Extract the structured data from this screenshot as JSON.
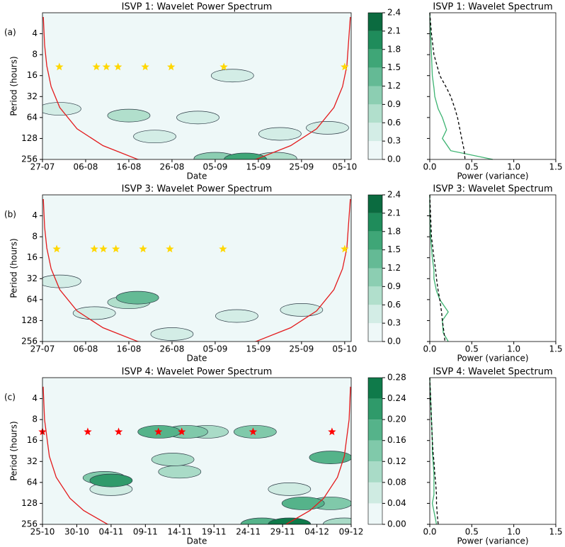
{
  "chart_data": [
    {
      "type": "wavelet",
      "title": "ISVP 1: Wavelet Power Spectrum",
      "panel_label": "(a)",
      "xlabel": "Date",
      "ylabel": "Period (hours)",
      "xlim": [
        0,
        71.5
      ],
      "xticks": [
        {
          "value": 0,
          "label": "27-07"
        },
        {
          "value": 10,
          "label": "06-08"
        },
        {
          "value": 20,
          "label": "16-08"
        },
        {
          "value": 30,
          "label": "26-08"
        },
        {
          "value": 40,
          "label": "05-09"
        },
        {
          "value": 50,
          "label": "15-09"
        },
        {
          "value": 60,
          "label": "25-09"
        },
        {
          "value": 70,
          "label": "05-10"
        }
      ],
      "ylim": [
        2,
        256
      ],
      "yticks": [
        4,
        8,
        16,
        32,
        64,
        128,
        256
      ],
      "log_y": true,
      "regions": {
        "x": [
          26,
          55,
          66,
          4,
          36,
          44,
          20,
          54,
          40,
          47
        ],
        "y": [
          120,
          110,
          90,
          48,
          64,
          16,
          60,
          250,
          250,
          256
        ],
        "power": [
          0.3,
          0.3,
          0.3,
          0.3,
          0.3,
          0.3,
          0.6,
          0.6,
          0.9,
          1.5
        ]
      },
      "coi": {
        "color": "#e31a1c",
        "x": [
          0.2,
          0.5,
          1,
          2,
          4,
          8,
          14,
          22,
          35.75,
          49.5,
          57.5,
          63.5,
          67.5,
          69.5,
          70.5,
          71.3
        ],
        "y": [
          2.3,
          5.8,
          11.6,
          23,
          46,
          93,
          162,
          255,
          415,
          255,
          162,
          93,
          46,
          23,
          11.6,
          2.3
        ]
      },
      "stars": {
        "color": "#ffd700",
        "x": [
          3.9,
          12.5,
          14.8,
          17.5,
          23.8,
          29.8,
          42,
          70
        ],
        "y": [
          12,
          12,
          12,
          12,
          12,
          12,
          12,
          12
        ]
      },
      "colorbar": {
        "ticks": [
          {
            "value": 0,
            "label": "0.0"
          },
          {
            "value": 0.3,
            "label": "0.3"
          },
          {
            "value": 0.6,
            "label": "0.6"
          },
          {
            "value": 0.9,
            "label": "0.9"
          },
          {
            "value": 1.2,
            "label": "1.2"
          },
          {
            "value": 1.5,
            "label": "1.5"
          },
          {
            "value": 1.8,
            "label": "1.8"
          },
          {
            "value": 2.1,
            "label": "2.1"
          },
          {
            "value": 2.4,
            "label": "2.4"
          }
        ],
        "colors": [
          "#eef8f8",
          "#d3ede6",
          "#b1dfcc",
          "#8cceb2",
          "#64ba95",
          "#3fa677",
          "#1f8c5b",
          "#0b6b40"
        ]
      }
    },
    {
      "type": "line",
      "title": "ISVP 1: Wavelet Spectrum",
      "xlabel": "Power (variance)",
      "xlim": [
        0,
        1.5
      ],
      "xticks": [
        {
          "value": 0,
          "label": "0.0"
        },
        {
          "value": 0.5,
          "label": "0.5"
        },
        {
          "value": 1,
          "label": "1.0"
        },
        {
          "value": 1.5,
          "label": "1.5"
        }
      ],
      "ylim": [
        2,
        256
      ],
      "yticks": [
        4,
        8,
        16,
        32,
        64,
        128,
        256
      ],
      "log_y": true,
      "y": [
        2,
        4,
        8,
        16,
        24,
        32,
        48,
        64,
        96,
        128,
        192,
        256
      ],
      "series": [
        {
          "color": "#3cb371",
          "values": [
            0,
            0.01,
            0.02,
            0.03,
            0.05,
            0.06,
            0.1,
            0.15,
            0.2,
            0.15,
            0.25,
            0.75
          ]
        },
        {
          "color": "#000000",
          "dashed": true,
          "values": [
            0,
            0.02,
            0.05,
            0.12,
            0.2,
            0.25,
            0.3,
            0.33,
            0.36,
            0.38,
            0.41,
            0.42
          ]
        }
      ]
    },
    {
      "type": "wavelet",
      "title": "ISVP 3: Wavelet Power Spectrum",
      "panel_label": "(b)",
      "xlabel": "Date",
      "ylabel": "Period (hours)",
      "xlim": [
        0,
        71.5
      ],
      "xticks": [
        {
          "value": 0,
          "label": "27-07"
        },
        {
          "value": 10,
          "label": "06-08"
        },
        {
          "value": 20,
          "label": "16-08"
        },
        {
          "value": 30,
          "label": "26-08"
        },
        {
          "value": 40,
          "label": "05-09"
        },
        {
          "value": 50,
          "label": "15-09"
        },
        {
          "value": 60,
          "label": "25-09"
        },
        {
          "value": 70,
          "label": "05-10"
        }
      ],
      "ylim": [
        2,
        256
      ],
      "yticks": [
        4,
        8,
        16,
        32,
        64,
        128,
        256
      ],
      "log_y": true,
      "regions": {
        "x": [
          12,
          45,
          60,
          4,
          30,
          20,
          22
        ],
        "y": [
          100,
          110,
          90,
          35,
          200,
          70,
          60
        ],
        "power": [
          0.3,
          0.3,
          0.3,
          0.3,
          0.3,
          0.6,
          1.2
        ]
      },
      "coi": {
        "color": "#e31a1c",
        "x": [
          0.2,
          0.5,
          1,
          2,
          4,
          8,
          14,
          22,
          35.75,
          49.5,
          57.5,
          63.5,
          67.5,
          69.5,
          70.5,
          71.3
        ],
        "y": [
          2.3,
          5.8,
          11.6,
          23,
          46,
          93,
          162,
          255,
          415,
          255,
          162,
          93,
          46,
          23,
          11.6,
          2.3
        ]
      },
      "stars": {
        "color": "#ffd700",
        "x": [
          3.3,
          12,
          14.1,
          17,
          23.3,
          29.5,
          41.8,
          70
        ],
        "y": [
          12,
          12,
          12,
          12,
          12,
          12,
          12,
          12
        ]
      },
      "colorbar": {
        "ticks": [
          {
            "value": 0,
            "label": "0.0"
          },
          {
            "value": 0.3,
            "label": "0.3"
          },
          {
            "value": 0.6,
            "label": "0.6"
          },
          {
            "value": 0.9,
            "label": "0.9"
          },
          {
            "value": 1.2,
            "label": "1.2"
          },
          {
            "value": 1.5,
            "label": "1.5"
          },
          {
            "value": 1.8,
            "label": "1.8"
          },
          {
            "value": 2.1,
            "label": "2.1"
          },
          {
            "value": 2.4,
            "label": "2.4"
          }
        ],
        "colors": [
          "#eef8f8",
          "#d3ede6",
          "#b1dfcc",
          "#8cceb2",
          "#64ba95",
          "#3fa677",
          "#1f8c5b",
          "#0b6b40"
        ]
      }
    },
    {
      "type": "line",
      "title": "ISVP 3: Wavelet Spectrum",
      "xlabel": "Power (variance)",
      "xlim": [
        0,
        1.5
      ],
      "xticks": [
        {
          "value": 0,
          "label": "0.0"
        },
        {
          "value": 0.5,
          "label": "0.5"
        },
        {
          "value": 1,
          "label": "1.0"
        },
        {
          "value": 1.5,
          "label": "1.5"
        }
      ],
      "ylim": [
        2,
        256
      ],
      "yticks": [
        4,
        8,
        16,
        32,
        64,
        128,
        256
      ],
      "log_y": true,
      "y": [
        2,
        4,
        8,
        16,
        24,
        32,
        48,
        64,
        96,
        128,
        192,
        256
      ],
      "series": [
        {
          "color": "#3cb371",
          "values": [
            0,
            0,
            0.01,
            0.03,
            0.05,
            0.05,
            0.08,
            0.12,
            0.22,
            0.15,
            0.16,
            0.22
          ]
        },
        {
          "color": "#000000",
          "dashed": true,
          "values": [
            0,
            0.01,
            0.02,
            0.05,
            0.07,
            0.08,
            0.1,
            0.12,
            0.14,
            0.15,
            0.17,
            0.18
          ]
        }
      ]
    },
    {
      "type": "wavelet",
      "title": "ISVP 4: Wavelet Power Spectrum",
      "panel_label": "(c)",
      "xlabel": "Date",
      "ylabel": "Period (hours)",
      "xlim": [
        0,
        45
      ],
      "xticks": [
        {
          "value": 0,
          "label": "25-10"
        },
        {
          "value": 5,
          "label": "30-10"
        },
        {
          "value": 10,
          "label": "04-11"
        },
        {
          "value": 15,
          "label": "09-11"
        },
        {
          "value": 20,
          "label": "14-11"
        },
        {
          "value": 25,
          "label": "19-11"
        },
        {
          "value": 30,
          "label": "24-11"
        },
        {
          "value": 35,
          "label": "29-11"
        },
        {
          "value": 40,
          "label": "04-12"
        },
        {
          "value": 45,
          "label": "09-12"
        }
      ],
      "ylim": [
        2,
        256
      ],
      "yticks": [
        4,
        8,
        16,
        32,
        64,
        128,
        256
      ],
      "log_y": true,
      "regions": {
        "x": [
          10,
          36,
          20,
          19,
          24,
          44,
          9,
          21,
          31,
          42,
          32,
          17,
          42,
          38,
          10,
          36
        ],
        "y": [
          80,
          80,
          45,
          30,
          12,
          256,
          55,
          12,
          12,
          128,
          256,
          12,
          28,
          128,
          60,
          256
        ],
        "power": [
          0.04,
          0.04,
          0.08,
          0.08,
          0.08,
          0.08,
          0.12,
          0.12,
          0.12,
          0.12,
          0.16,
          0.16,
          0.16,
          0.16,
          0.2,
          0.24
        ]
      },
      "coi": {
        "color": "#e31a1c",
        "x": [
          0.1,
          0.3,
          1,
          2,
          4,
          6,
          9.5,
          22.5,
          35.5,
          39,
          41,
          43,
          44,
          44.7,
          44.9
        ],
        "y": [
          2.7,
          8,
          27,
          54,
          108,
          162,
          256,
          607,
          256,
          162,
          108,
          54,
          27,
          8,
          2.7
        ]
      },
      "stars": {
        "color": "#ff0000",
        "x": [
          0,
          6.6,
          11.1,
          16.9,
          20.3,
          30.7,
          42.2
        ],
        "y": [
          12,
          12,
          12,
          12,
          12,
          12,
          12
        ]
      },
      "colorbar": {
        "ticks": [
          {
            "value": 0,
            "label": "0.00"
          },
          {
            "value": 0.04,
            "label": "0.04"
          },
          {
            "value": 0.08,
            "label": "0.08"
          },
          {
            "value": 0.12,
            "label": "0.12"
          },
          {
            "value": 0.16,
            "label": "0.16"
          },
          {
            "value": 0.2,
            "label": "0.20"
          },
          {
            "value": 0.24,
            "label": "0.24"
          },
          {
            "value": 0.28,
            "label": "0.28"
          }
        ],
        "colors": [
          "#eef8f8",
          "#cfebe2",
          "#a9dbc7",
          "#80c9aa",
          "#55b38a",
          "#2f9a6a",
          "#0f7a4a"
        ]
      }
    },
    {
      "type": "line",
      "title": "ISVP 4: Wavelet Spectrum",
      "xlabel": "Power (variance)",
      "xlim": [
        0,
        1.5
      ],
      "xticks": [
        {
          "value": 0,
          "label": "0.0"
        },
        {
          "value": 0.5,
          "label": "0.5"
        },
        {
          "value": 1,
          "label": "1.0"
        },
        {
          "value": 1.5,
          "label": "1.5"
        }
      ],
      "ylim": [
        2,
        256
      ],
      "yticks": [
        4,
        8,
        16,
        32,
        64,
        128,
        256
      ],
      "log_y": true,
      "y": [
        2,
        4,
        8,
        16,
        24,
        32,
        48,
        64,
        96,
        128,
        192,
        256
      ],
      "series": [
        {
          "color": "#3cb371",
          "values": [
            0,
            0.01,
            0.02,
            0.03,
            0.03,
            0.04,
            0.05,
            0.05,
            0.05,
            0.03,
            0.06,
            0.08
          ]
        },
        {
          "color": "#000000",
          "dashed": true,
          "values": [
            0,
            0.01,
            0.02,
            0.03,
            0.04,
            0.05,
            0.06,
            0.07,
            0.08,
            0.08,
            0.09,
            0.1
          ]
        }
      ]
    }
  ]
}
